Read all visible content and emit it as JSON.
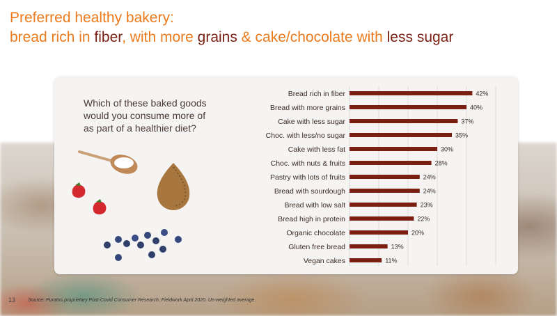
{
  "title": {
    "line1": "Preferred healthy bakery:",
    "line2_parts": [
      "bread rich in ",
      "fiber",
      ", with more ",
      "grains",
      " & ",
      "cake/chocolate with ",
      "less sugar"
    ]
  },
  "question": "Which of these baked goods would you consume more of as part of a healthier diet?",
  "footer": {
    "page_number": "13",
    "source": "Source: Puratos proprietary Post-Covid Consumer Research, Fieldwork April 2020. Un-weighted average."
  },
  "colors": {
    "accent_orange": "#ec7a1c",
    "dark_brown": "#7a1f12",
    "bar": "#7a1f12"
  },
  "chart_data": {
    "type": "bar",
    "orientation": "horizontal",
    "categories": [
      "Bread rich in fiber",
      "Bread with more grains",
      "Cake with less sugar",
      "Choc. with less/no sugar",
      "Cake with less fat",
      "Choc. with nuts & fruits",
      "Pastry with lots of fruits",
      "Bread with sourdough",
      "Bread with low salt",
      "Bread high in protein",
      "Organic chocolate",
      "Gluten free bread",
      "Vegan cakes"
    ],
    "values": [
      42,
      40,
      37,
      35,
      30,
      28,
      24,
      24,
      23,
      22,
      20,
      13,
      11
    ],
    "value_labels": [
      "42%",
      "40%",
      "37%",
      "35%",
      "30%",
      "28%",
      "24%",
      "24%",
      "23%",
      "22%",
      "20%",
      "13%",
      "11%"
    ],
    "xlim": [
      0,
      50
    ],
    "grid": true
  }
}
